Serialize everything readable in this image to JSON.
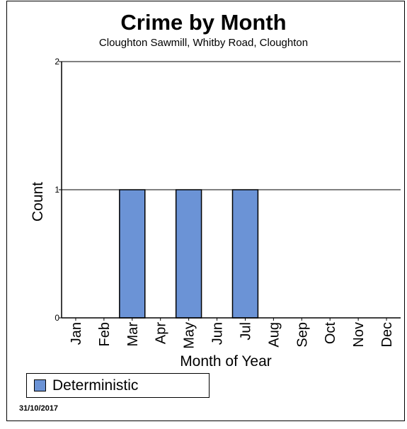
{
  "colors": {
    "bar_fill": "#6b93d6",
    "bar_stroke": "#000000",
    "gridline": "#000000"
  },
  "chart_data": {
    "type": "bar",
    "title": "Crime by Month",
    "subtitle": "Cloughton Sawmill, Whitby Road, Cloughton",
    "xlabel": "Month of Year",
    "ylabel": "Count",
    "categories": [
      "Jan",
      "Feb",
      "Mar",
      "Apr",
      "May",
      "Jun",
      "Jul",
      "Aug",
      "Sep",
      "Oct",
      "Nov",
      "Dec"
    ],
    "series": [
      {
        "name": "Deterministic",
        "values": [
          0,
          0,
          1,
          0,
          1,
          0,
          1,
          0,
          0,
          0,
          0,
          0
        ]
      }
    ],
    "ylim": [
      0,
      2
    ],
    "yticks": [
      "0",
      "1",
      "2"
    ],
    "grid": true,
    "legend_placement": "bottom-left"
  },
  "footer": {
    "date": "31/10/2017"
  }
}
